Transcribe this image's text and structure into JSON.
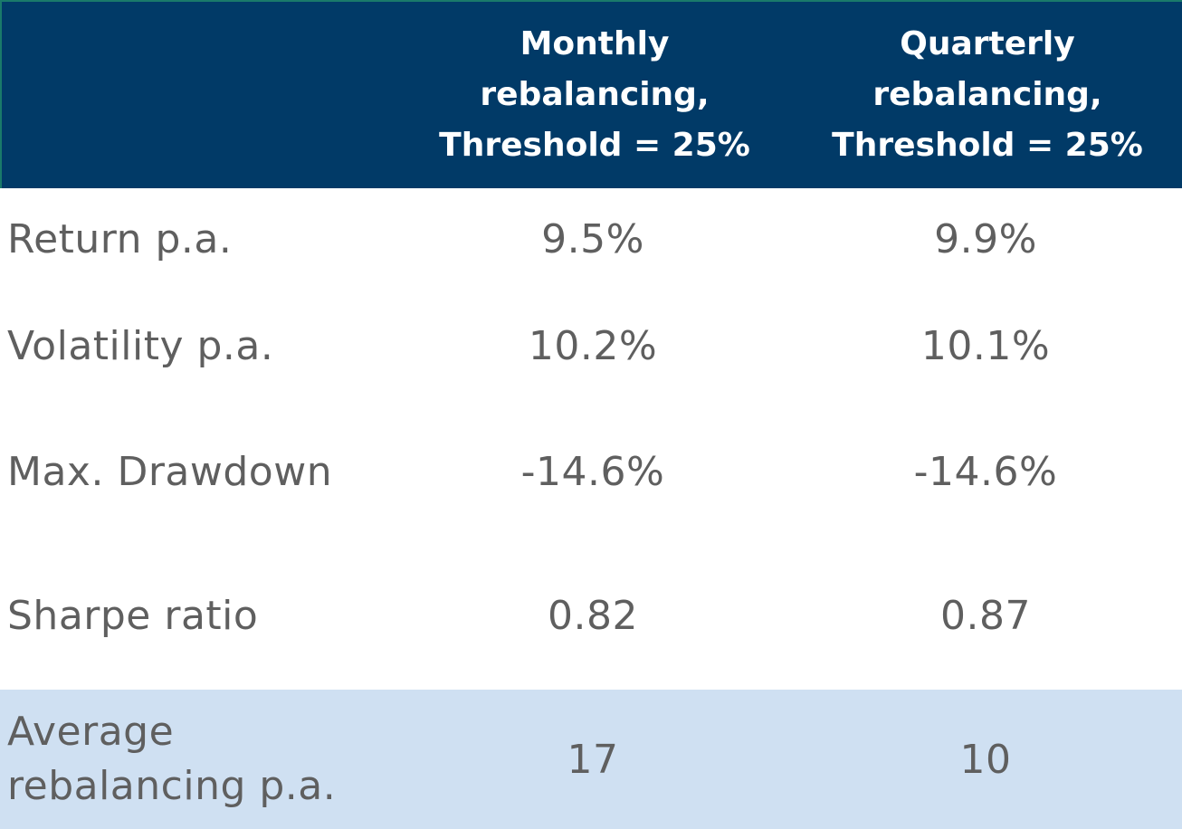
{
  "header": {
    "empty": "",
    "col1": "Monthly\nrebalancing,\nThreshold = 25%",
    "col2": "Quarterly\nrebalancing,\nThreshold = 25%"
  },
  "rows": [
    {
      "label": "Return p.a.",
      "monthly": "9.5%",
      "quarterly": "9.9%"
    },
    {
      "label": "Volatility p.a.",
      "monthly": "10.2%",
      "quarterly": "10.1%"
    },
    {
      "label": "Max. Drawdown",
      "monthly": "-14.6%",
      "quarterly": "-14.6%"
    },
    {
      "label": "Sharpe ratio",
      "monthly": "0.82",
      "quarterly": "0.87"
    },
    {
      "label": "Average\nrebalancing p.a.",
      "monthly": "17",
      "quarterly": "10"
    }
  ],
  "colors": {
    "header_bg": "#013a67",
    "highlight_row_bg": "#cfe0f2",
    "body_text": "#5f5f5f"
  }
}
